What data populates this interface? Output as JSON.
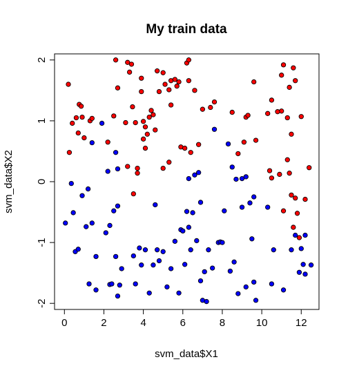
{
  "chart_data": {
    "type": "scatter",
    "title": "My train data",
    "xlabel": "svm_data$X1",
    "ylabel": "svm_data$X2",
    "xlim": [
      -0.5,
      12.9
    ],
    "ylim": [
      -2.1,
      2.1
    ],
    "x_ticks": [
      0,
      2,
      4,
      6,
      8,
      10,
      12
    ],
    "y_ticks": [
      -2,
      -1,
      0,
      1,
      2
    ],
    "grid": false,
    "series": [
      {
        "color": "#ff0000",
        "points": [
          [
            0.2,
            1.6
          ],
          [
            0.25,
            0.48
          ],
          [
            0.4,
            0.96
          ],
          [
            0.6,
            1.05
          ],
          [
            0.7,
            0.8
          ],
          [
            0.75,
            1.27
          ],
          [
            0.85,
            1.24
          ],
          [
            0.9,
            1.06
          ],
          [
            1.0,
            0.72
          ],
          [
            1.3,
            1.0
          ],
          [
            1.4,
            1.04
          ],
          [
            2.2,
            0.65
          ],
          [
            2.5,
            1.08
          ],
          [
            2.6,
            2.0
          ],
          [
            2.7,
            1.54
          ],
          [
            3.1,
            0.97
          ],
          [
            3.2,
            1.96
          ],
          [
            3.3,
            1.8
          ],
          [
            3.4,
            1.93
          ],
          [
            3.45,
            1.23
          ],
          [
            3.2,
            0.25
          ],
          [
            3.5,
            -0.2
          ],
          [
            3.6,
            0.97
          ],
          [
            3.7,
            0.22
          ],
          [
            3.7,
            0.14
          ],
          [
            3.9,
            1.7
          ],
          [
            3.9,
            1.48
          ],
          [
            4.0,
            0.99
          ],
          [
            4.0,
            0.7
          ],
          [
            4.1,
            0.9
          ],
          [
            4.1,
            0.55
          ],
          [
            4.2,
            0.78
          ],
          [
            4.3,
            1.06
          ],
          [
            4.4,
            1.17
          ],
          [
            4.5,
            1.1
          ],
          [
            4.6,
            0.85
          ],
          [
            4.7,
            1.82
          ],
          [
            4.8,
            1.48
          ],
          [
            5.0,
            1.79
          ],
          [
            5.0,
            0.22
          ],
          [
            5.1,
            1.6
          ],
          [
            5.3,
            0.32
          ],
          [
            5.3,
            1.51
          ],
          [
            5.4,
            1.66
          ],
          [
            5.4,
            1.26
          ],
          [
            5.6,
            1.68
          ],
          [
            5.7,
            1.57
          ],
          [
            5.8,
            1.64
          ],
          [
            5.9,
            0.57
          ],
          [
            6.1,
            0.55
          ],
          [
            6.2,
            1.95
          ],
          [
            6.3,
            2.0
          ],
          [
            6.3,
            1.66
          ],
          [
            6.4,
            0.48
          ],
          [
            6.6,
            1.5
          ],
          [
            6.8,
            0.61
          ],
          [
            7.0,
            1.19
          ],
          [
            7.4,
            1.22
          ],
          [
            7.6,
            1.31
          ],
          [
            8.5,
            1.14
          ],
          [
            8.8,
            0.46
          ],
          [
            9.1,
            0.65
          ],
          [
            9.2,
            1.06
          ],
          [
            9.3,
            1.09
          ],
          [
            9.6,
            1.64
          ],
          [
            9.7,
            0.68
          ],
          [
            10.3,
            1.12
          ],
          [
            10.4,
            0.18
          ],
          [
            10.5,
            1.34
          ],
          [
            10.5,
            0.06
          ],
          [
            10.9,
            0.12
          ],
          [
            11.0,
            1.75
          ],
          [
            11.1,
            1.92
          ],
          [
            11.0,
            1.16
          ],
          [
            11.1,
            -0.48
          ],
          [
            11.3,
            0.36
          ],
          [
            11.4,
            0.14
          ],
          [
            11.5,
            -0.22
          ],
          [
            11.6,
            -0.75
          ],
          [
            11.7,
            -0.27
          ],
          [
            11.8,
            -0.52
          ],
          [
            11.9,
            -0.92
          ],
          [
            12.0,
            1.07
          ],
          [
            12.2,
            -0.29
          ],
          [
            12.4,
            0.23
          ],
          [
            10.8,
            1.15
          ],
          [
            11.3,
            1.05
          ],
          [
            11.4,
            1.55
          ],
          [
            11.6,
            1.87
          ],
          [
            11.7,
            1.66
          ],
          [
            11.5,
            0.78
          ]
        ]
      },
      {
        "color": "#0000ff",
        "points": [
          [
            0.05,
            -0.68
          ],
          [
            0.35,
            -0.03
          ],
          [
            0.45,
            -0.51
          ],
          [
            0.55,
            -1.15
          ],
          [
            0.7,
            -1.11
          ],
          [
            0.9,
            -0.23
          ],
          [
            1.1,
            -0.74
          ],
          [
            1.2,
            -0.12
          ],
          [
            1.25,
            -1.68
          ],
          [
            1.4,
            0.64
          ],
          [
            1.4,
            -0.68
          ],
          [
            1.6,
            -1.23
          ],
          [
            1.6,
            -1.78
          ],
          [
            1.9,
            0.96
          ],
          [
            2.1,
            -0.84
          ],
          [
            2.2,
            0.17
          ],
          [
            2.3,
            -0.72
          ],
          [
            2.3,
            -1.69
          ],
          [
            2.4,
            -1.68
          ],
          [
            2.5,
            -0.48
          ],
          [
            2.6,
            0.48
          ],
          [
            2.6,
            -1.23
          ],
          [
            2.7,
            0.21
          ],
          [
            2.7,
            -0.4
          ],
          [
            2.7,
            -1.88
          ],
          [
            2.8,
            -1.7
          ],
          [
            2.9,
            -1.43
          ],
          [
            3.5,
            -1.22
          ],
          [
            3.6,
            -1.68
          ],
          [
            3.8,
            -1.09
          ],
          [
            3.9,
            -1.37
          ],
          [
            4.1,
            -1.12
          ],
          [
            4.3,
            -1.83
          ],
          [
            4.5,
            -1.37
          ],
          [
            4.6,
            -0.38
          ],
          [
            4.7,
            -1.12
          ],
          [
            4.8,
            -1.3
          ],
          [
            5.0,
            -1.15
          ],
          [
            5.2,
            -1.73
          ],
          [
            5.4,
            -1.43
          ],
          [
            5.6,
            -0.98
          ],
          [
            5.8,
            -1.83
          ],
          [
            5.9,
            -0.79
          ],
          [
            6.0,
            -0.81
          ],
          [
            6.1,
            -1.36
          ],
          [
            6.2,
            -0.49
          ],
          [
            6.3,
            -0.75
          ],
          [
            6.4,
            -1.12
          ],
          [
            6.5,
            -0.51
          ],
          [
            6.6,
            0.11
          ],
          [
            6.7,
            -0.97
          ],
          [
            6.8,
            0.15
          ],
          [
            6.9,
            -0.34
          ],
          [
            7.0,
            -1.95
          ],
          [
            7.1,
            -1.48
          ],
          [
            7.2,
            -1.97
          ],
          [
            7.3,
            -1.12
          ],
          [
            7.5,
            -1.42
          ],
          [
            7.6,
            0.86
          ],
          [
            7.8,
            -1.0
          ],
          [
            7.9,
            -0.99
          ],
          [
            8.1,
            -0.48
          ],
          [
            8.3,
            0.62
          ],
          [
            8.4,
            -1.47
          ],
          [
            8.5,
            0.24
          ],
          [
            8.6,
            -1.32
          ],
          [
            8.7,
            0.04
          ],
          [
            8.8,
            -1.84
          ],
          [
            9.0,
            -0.42
          ],
          [
            9.2,
            -1.73
          ],
          [
            9.2,
            0.08
          ],
          [
            9.4,
            -0.35
          ],
          [
            9.5,
            -0.94
          ],
          [
            9.6,
            -1.65
          ],
          [
            9.7,
            -1.95
          ],
          [
            10.3,
            -0.42
          ],
          [
            10.5,
            -1.68
          ],
          [
            10.6,
            -1.12
          ],
          [
            11.1,
            -1.78
          ],
          [
            11.5,
            -1.12
          ],
          [
            11.7,
            -0.88
          ],
          [
            11.9,
            -1.49
          ],
          [
            12.1,
            -1.36
          ],
          [
            12.2,
            -1.52
          ],
          [
            12.5,
            -1.37
          ],
          [
            6.3,
            0.05
          ],
          [
            6.9,
            -1.63
          ],
          [
            9.6,
            -0.25
          ],
          [
            12.0,
            -1.1
          ],
          [
            12.2,
            -0.88
          ],
          [
            9.0,
            0.05
          ],
          [
            8.0,
            -1.0
          ]
        ]
      }
    ]
  }
}
